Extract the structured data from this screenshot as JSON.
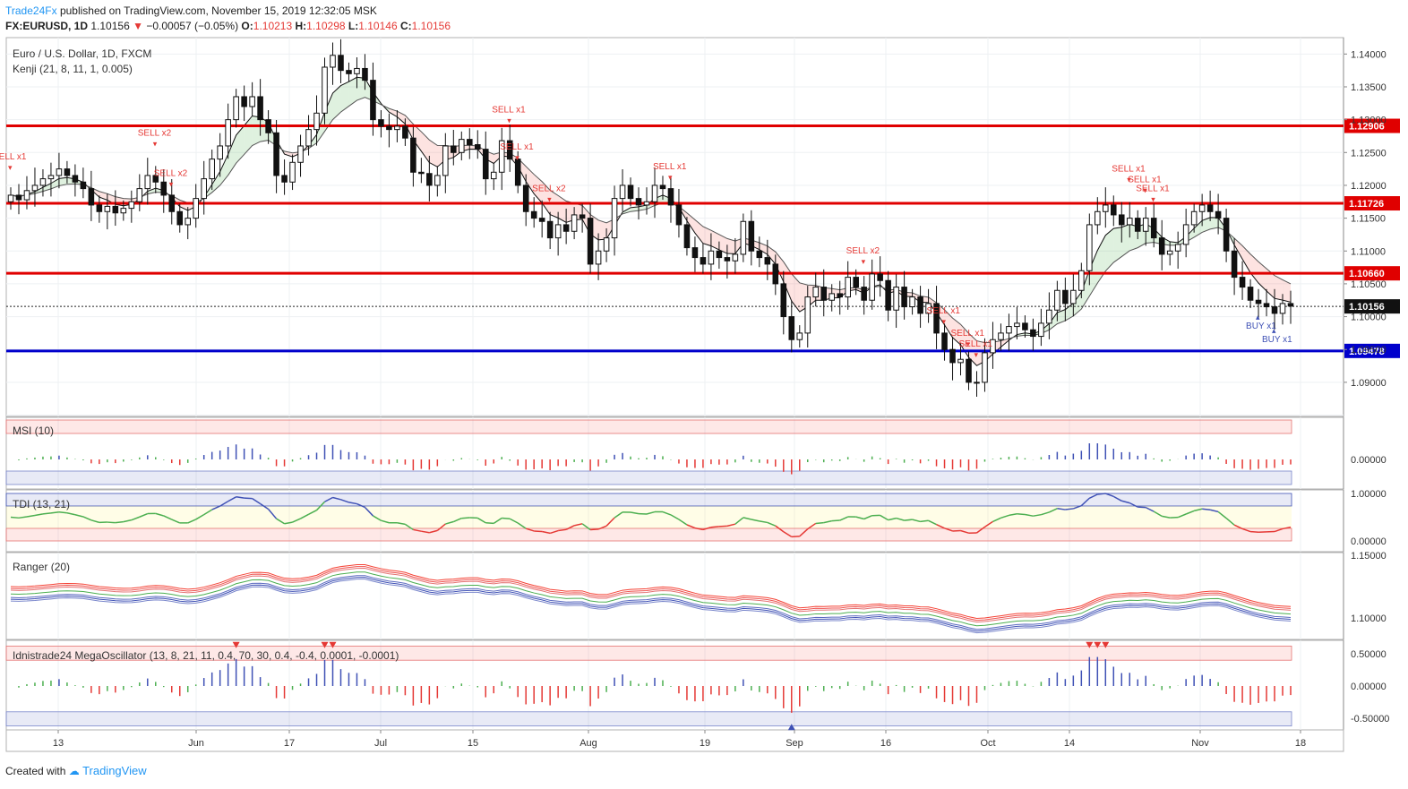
{
  "header": {
    "brand": "Trade24Fx",
    "publish_text": "published on TradingView.com, November 15, 2019 12:32:05 MSK",
    "symbol": "FX:EURUSD, 1D",
    "last": "1.10156",
    "change": "−0.00057 (−0.05%)",
    "open_label": "O:",
    "open": "1.10213",
    "high_label": "H:",
    "high": "1.10298",
    "low_label": "L:",
    "low": "1.10146",
    "close_label": "C:",
    "close": "1.10156"
  },
  "footer": {
    "created_with": "Created with",
    "brand": "TradingView"
  },
  "colors": {
    "up": "#ffffff",
    "down": "#111111",
    "resist": "#e00000",
    "support": "#0000cc",
    "sell": "#e53935",
    "buy": "#3f51b5"
  },
  "chart_data": {
    "type": "candlestick",
    "title": "Euro / U.S. Dollar, 1D, FXCM",
    "indicator": "Kenji (21, 8, 11, 1, 0.005)",
    "x_ticks": [
      "13",
      "Jun",
      "17",
      "Jul",
      "15",
      "Aug",
      "19",
      "Sep",
      "16",
      "Oct",
      "14",
      "Nov",
      "18"
    ],
    "y_ticks": [
      "1.14000",
      "1.13500",
      "1.13000",
      "1.12500",
      "1.12000",
      "1.11500",
      "1.11000",
      "1.10500",
      "1.10000",
      "1.09500",
      "1.09000",
      "1.08500"
    ],
    "ylim": [
      1.0848,
      1.1425
    ],
    "levels": [
      {
        "value": 1.12906,
        "label": "1.12906",
        "color": "#e00000"
      },
      {
        "value": 1.11726,
        "label": "1.11726",
        "color": "#e00000"
      },
      {
        "value": 1.1066,
        "label": "1.10660",
        "color": "#e00000"
      },
      {
        "value": 1.09478,
        "label": "1.09478",
        "color": "#0000cc"
      }
    ],
    "last_price": {
      "value": 1.10156,
      "label": "1.10156"
    },
    "closes": [
      1.1185,
      1.1178,
      1.1192,
      1.12,
      1.121,
      1.1215,
      1.1225,
      1.1215,
      1.1205,
      1.1195,
      1.117,
      1.116,
      1.1168,
      1.1158,
      1.1165,
      1.1175,
      1.1195,
      1.1215,
      1.1205,
      1.1185,
      1.116,
      1.114,
      1.115,
      1.118,
      1.121,
      1.124,
      1.126,
      1.13,
      1.1335,
      1.132,
      1.1335,
      1.13,
      1.128,
      1.1215,
      1.1205,
      1.1235,
      1.126,
      1.1285,
      1.131,
      1.138,
      1.1398,
      1.1375,
      1.137,
      1.1378,
      1.136,
      1.13,
      1.129,
      1.1285,
      1.129,
      1.1272,
      1.122,
      1.1218,
      1.12,
      1.1215,
      1.126,
      1.125,
      1.127,
      1.1262,
      1.1255,
      1.121,
      1.122,
      1.1268,
      1.124,
      1.12,
      1.116,
      1.115,
      1.1145,
      1.112,
      1.114,
      1.113,
      1.1155,
      1.115,
      1.108,
      1.11,
      1.112,
      1.118,
      1.12,
      1.118,
      1.117,
      1.1175,
      1.12,
      1.1195,
      1.117,
      1.114,
      1.1105,
      1.109,
      1.108,
      1.11,
      1.109,
      1.1085,
      1.1095,
      1.1145,
      1.11,
      1.109,
      1.108,
      1.105,
      1.1,
      1.0965,
      1.0975,
      1.103,
      1.1045,
      1.1025,
      1.1035,
      1.103,
      1.106,
      1.1045,
      1.1025,
      1.1065,
      1.1055,
      1.101,
      1.1045,
      1.1015,
      1.103,
      1.1005,
      1.102,
      1.0975,
      1.095,
      1.093,
      1.0935,
      1.09,
      1.09,
      1.0945,
      1.0965,
      1.0975,
      1.0985,
      1.099,
      1.098,
      1.097,
      1.099,
      1.101,
      1.104,
      1.102,
      1.104,
      1.107,
      1.114,
      1.116,
      1.117,
      1.1155,
      1.114,
      1.115,
      1.113,
      1.115,
      1.112,
      1.1095,
      1.11,
      1.111,
      1.114,
      1.116,
      1.117,
      1.116,
      1.115,
      1.11,
      1.106,
      1.1045,
      1.1025,
      1.102,
      1.1015,
      1.1005,
      1.102,
      1.1016
    ]
  },
  "signals": {
    "sell": [
      {
        "label": "SELL x1",
        "date_index": 0
      },
      {
        "label": "SELL x2",
        "date_index": 18
      },
      {
        "label": "SELL x2",
        "date_index": 20
      },
      {
        "label": "SELL x1",
        "date_index": 62
      },
      {
        "label": "SELL x1",
        "date_index": 63
      },
      {
        "label": "SELL x2",
        "date_index": 67
      },
      {
        "label": "SELL x1",
        "date_index": 82
      },
      {
        "label": "SELL x2",
        "date_index": 106
      },
      {
        "label": "SELL x1",
        "date_index": 116
      },
      {
        "label": "SELL x1",
        "date_index": 119
      },
      {
        "label": "SELL x1",
        "date_index": 120
      },
      {
        "label": "SELL x1",
        "date_index": 139
      },
      {
        "label": "SELL x1",
        "date_index": 141
      },
      {
        "label": "SELL x1",
        "date_index": 142
      }
    ],
    "buy": [
      {
        "label": "BUY x1",
        "date_index": 155
      },
      {
        "label": "BUY x1",
        "date_index": 157
      }
    ]
  },
  "panels": [
    {
      "title": "MSI (10)",
      "y_ticks": [
        "0.00000"
      ]
    },
    {
      "title": "TDI (13, 21)",
      "y_ticks": [
        "1.00000",
        "0.00000"
      ]
    },
    {
      "title": "Ranger (20)",
      "y_ticks": [
        "1.15000",
        "1.10000"
      ]
    },
    {
      "title": "Idnistrade24 MegaOscillator (13, 8, 21, 11, 0.4, 70, 30, 0.4, -0.4, 0.0001, -0.0001)",
      "y_ticks": [
        "0.50000",
        "0.00000",
        "-0.50000"
      ]
    }
  ]
}
